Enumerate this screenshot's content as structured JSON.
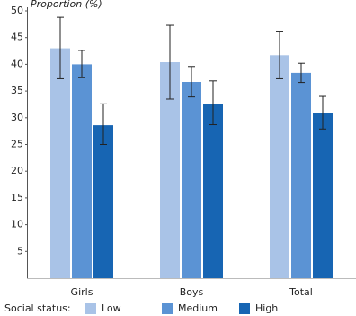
{
  "chart_data": {
    "type": "bar",
    "y_label": "Proportion (%)",
    "categories": [
      "Girls",
      "Boys",
      "Total"
    ],
    "legend_title": "Social status:",
    "series": [
      {
        "name": "Low",
        "color": "#a9c3e7",
        "values": [
          43,
          40.4,
          41.7
        ],
        "errors": [
          [
            37.3,
            48.8
          ],
          [
            33.5,
            47.3
          ],
          [
            37.3,
            46.2
          ]
        ]
      },
      {
        "name": "Medium",
        "color": "#5b93d4",
        "values": [
          40,
          36.7,
          38.4
        ],
        "errors": [
          [
            37.5,
            42.6
          ],
          [
            33.9,
            39.6
          ],
          [
            36.6,
            40.2
          ]
        ]
      },
      {
        "name": "High",
        "color": "#1765b3",
        "values": [
          28.6,
          32.6,
          30.9
        ],
        "errors": [
          [
            25,
            32.6
          ],
          [
            28.7,
            36.9
          ],
          [
            27.9,
            34
          ]
        ]
      }
    ],
    "ylim": [
      0,
      50
    ],
    "yticks": [
      5,
      10,
      15,
      20,
      25,
      30,
      35,
      40,
      45,
      50
    ],
    "legend": "bottom"
  }
}
